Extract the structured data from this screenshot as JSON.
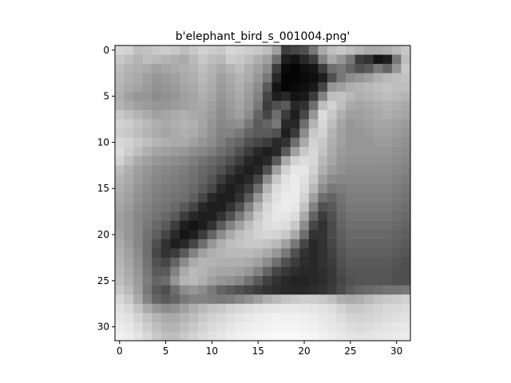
{
  "chart_data": {
    "type": "heatmap",
    "title": "b'elephant_bird_s_001004.png'",
    "xlabel": "",
    "ylabel": "",
    "colormap": "gray",
    "grid": false,
    "xlim": [
      -0.5,
      31.5
    ],
    "ylim": [
      31.5,
      -0.5
    ],
    "x_ticks": [
      0,
      5,
      10,
      15,
      20,
      25,
      30
    ],
    "y_ticks": [
      0,
      5,
      10,
      15,
      20,
      25,
      30
    ],
    "x_tick_labels": [
      "0",
      "5",
      "10",
      "15",
      "20",
      "25",
      "30"
    ],
    "y_tick_labels": [
      "0",
      "5",
      "10",
      "15",
      "20",
      "25",
      "30"
    ],
    "rows": 32,
    "cols": 32,
    "values": [
      [
        215,
        210,
        190,
        195,
        200,
        205,
        200,
        190,
        200,
        210,
        205,
        200,
        215,
        210,
        205,
        200,
        190,
        160,
        60,
        70,
        80,
        120,
        170,
        190,
        200,
        190,
        180,
        170,
        170,
        175,
        185,
        200
      ],
      [
        200,
        190,
        180,
        190,
        185,
        180,
        175,
        170,
        185,
        200,
        190,
        185,
        205,
        200,
        190,
        175,
        160,
        110,
        30,
        20,
        40,
        60,
        130,
        170,
        150,
        120,
        60,
        50,
        20,
        30,
        120,
        190
      ],
      [
        190,
        180,
        175,
        170,
        160,
        165,
        170,
        175,
        180,
        190,
        180,
        170,
        180,
        190,
        175,
        160,
        140,
        60,
        10,
        5,
        15,
        20,
        60,
        110,
        120,
        100,
        80,
        90,
        120,
        100,
        150,
        200
      ],
      [
        185,
        175,
        170,
        160,
        150,
        155,
        160,
        170,
        175,
        185,
        175,
        160,
        170,
        180,
        170,
        150,
        120,
        40,
        5,
        5,
        10,
        15,
        30,
        80,
        120,
        140,
        150,
        160,
        175,
        185,
        190,
        195
      ],
      [
        180,
        170,
        165,
        155,
        145,
        150,
        155,
        165,
        170,
        180,
        170,
        155,
        165,
        175,
        160,
        140,
        90,
        20,
        5,
        10,
        15,
        25,
        70,
        150,
        160,
        175,
        180,
        185,
        190,
        195,
        190,
        190
      ],
      [
        175,
        160,
        150,
        150,
        140,
        145,
        150,
        160,
        165,
        175,
        165,
        150,
        160,
        170,
        155,
        130,
        70,
        30,
        40,
        20,
        25,
        60,
        130,
        190,
        195,
        185,
        175,
        180,
        185,
        190,
        185,
        180
      ],
      [
        180,
        170,
        160,
        155,
        150,
        150,
        155,
        160,
        165,
        170,
        160,
        145,
        155,
        165,
        150,
        120,
        60,
        80,
        90,
        40,
        50,
        110,
        190,
        210,
        190,
        170,
        165,
        170,
        175,
        180,
        175,
        170
      ],
      [
        200,
        190,
        180,
        170,
        160,
        165,
        170,
        175,
        170,
        165,
        155,
        140,
        150,
        160,
        140,
        100,
        70,
        110,
        60,
        30,
        70,
        150,
        220,
        200,
        175,
        160,
        160,
        165,
        170,
        175,
        170,
        165
      ],
      [
        210,
        205,
        195,
        185,
        175,
        170,
        175,
        180,
        175,
        165,
        150,
        135,
        140,
        145,
        120,
        90,
        100,
        120,
        40,
        40,
        110,
        180,
        215,
        190,
        165,
        150,
        155,
        160,
        165,
        165,
        160,
        155
      ],
      [
        205,
        200,
        190,
        180,
        170,
        165,
        170,
        175,
        170,
        160,
        145,
        130,
        130,
        120,
        100,
        90,
        90,
        80,
        30,
        60,
        140,
        200,
        210,
        180,
        160,
        150,
        150,
        155,
        160,
        160,
        155,
        150
      ],
      [
        215,
        210,
        200,
        190,
        180,
        175,
        170,
        170,
        160,
        150,
        140,
        125,
        110,
        100,
        80,
        70,
        60,
        40,
        50,
        110,
        170,
        210,
        200,
        175,
        160,
        150,
        150,
        150,
        155,
        155,
        150,
        145
      ],
      [
        220,
        205,
        190,
        175,
        165,
        160,
        155,
        150,
        140,
        135,
        125,
        110,
        100,
        80,
        60,
        40,
        30,
        40,
        90,
        160,
        200,
        215,
        195,
        170,
        155,
        150,
        150,
        150,
        150,
        150,
        145,
        140
      ],
      [
        210,
        190,
        170,
        160,
        150,
        145,
        140,
        135,
        125,
        115,
        105,
        95,
        80,
        60,
        40,
        30,
        40,
        90,
        170,
        210,
        220,
        215,
        185,
        165,
        150,
        145,
        145,
        145,
        145,
        145,
        140,
        135
      ],
      [
        190,
        175,
        160,
        150,
        140,
        135,
        130,
        125,
        115,
        105,
        95,
        80,
        60,
        40,
        30,
        40,
        80,
        160,
        210,
        230,
        230,
        210,
        175,
        155,
        145,
        140,
        140,
        140,
        140,
        140,
        135,
        130
      ],
      [
        180,
        170,
        155,
        145,
        135,
        130,
        125,
        120,
        110,
        100,
        85,
        60,
        40,
        30,
        40,
        70,
        140,
        200,
        225,
        235,
        225,
        200,
        160,
        140,
        135,
        135,
        135,
        135,
        135,
        135,
        130,
        125
      ],
      [
        175,
        165,
        150,
        140,
        130,
        125,
        120,
        115,
        105,
        90,
        70,
        40,
        30,
        40,
        60,
        110,
        180,
        220,
        230,
        235,
        220,
        185,
        140,
        120,
        125,
        130,
        130,
        130,
        130,
        130,
        125,
        120
      ],
      [
        170,
        160,
        145,
        135,
        125,
        120,
        115,
        110,
        95,
        70,
        40,
        30,
        30,
        50,
        90,
        150,
        200,
        225,
        235,
        235,
        210,
        160,
        110,
        100,
        115,
        125,
        125,
        125,
        125,
        125,
        120,
        115
      ],
      [
        165,
        155,
        140,
        130,
        120,
        115,
        105,
        90,
        70,
        40,
        30,
        30,
        50,
        80,
        130,
        180,
        215,
        230,
        235,
        230,
        195,
        130,
        80,
        90,
        110,
        120,
        120,
        120,
        120,
        120,
        115,
        110
      ],
      [
        160,
        150,
        135,
        125,
        115,
        105,
        90,
        60,
        40,
        30,
        30,
        50,
        80,
        120,
        160,
        200,
        220,
        230,
        230,
        220,
        170,
        100,
        60,
        80,
        105,
        115,
        115,
        115,
        115,
        115,
        110,
        105
      ],
      [
        160,
        150,
        135,
        120,
        105,
        90,
        60,
        30,
        20,
        30,
        50,
        90,
        130,
        160,
        190,
        210,
        220,
        225,
        220,
        200,
        140,
        70,
        50,
        75,
        100,
        110,
        110,
        110,
        110,
        110,
        105,
        100
      ],
      [
        165,
        150,
        135,
        115,
        95,
        70,
        40,
        20,
        30,
        60,
        100,
        140,
        170,
        190,
        200,
        210,
        215,
        210,
        200,
        170,
        110,
        50,
        50,
        75,
        95,
        105,
        105,
        105,
        105,
        105,
        100,
        95
      ],
      [
        170,
        155,
        135,
        110,
        80,
        50,
        30,
        40,
        70,
        110,
        150,
        175,
        190,
        195,
        200,
        200,
        195,
        185,
        160,
        120,
        70,
        40,
        50,
        70,
        90,
        100,
        100,
        100,
        100,
        100,
        95,
        90
      ],
      [
        175,
        160,
        140,
        110,
        70,
        50,
        60,
        90,
        130,
        160,
        175,
        180,
        185,
        185,
        185,
        180,
        170,
        150,
        120,
        80,
        50,
        40,
        50,
        65,
        85,
        95,
        95,
        95,
        95,
        95,
        90,
        85
      ],
      [
        180,
        165,
        145,
        115,
        80,
        70,
        100,
        140,
        170,
        180,
        180,
        175,
        175,
        175,
        170,
        160,
        140,
        110,
        80,
        60,
        45,
        40,
        50,
        60,
        80,
        90,
        90,
        90,
        90,
        90,
        85,
        80
      ],
      [
        185,
        170,
        150,
        120,
        90,
        90,
        130,
        170,
        185,
        180,
        170,
        165,
        165,
        160,
        150,
        130,
        100,
        70,
        55,
        45,
        40,
        40,
        45,
        55,
        75,
        85,
        85,
        85,
        85,
        85,
        80,
        80
      ],
      [
        190,
        175,
        155,
        125,
        100,
        110,
        150,
        180,
        185,
        175,
        160,
        150,
        145,
        135,
        115,
        90,
        65,
        50,
        40,
        35,
        35,
        40,
        45,
        55,
        70,
        80,
        85,
        85,
        85,
        85,
        80,
        80
      ],
      [
        200,
        185,
        160,
        120,
        90,
        80,
        110,
        140,
        150,
        140,
        120,
        100,
        90,
        80,
        70,
        60,
        50,
        45,
        40,
        40,
        40,
        45,
        50,
        60,
        75,
        90,
        100,
        105,
        110,
        115,
        115,
        120
      ],
      [
        215,
        200,
        170,
        130,
        100,
        90,
        100,
        120,
        130,
        130,
        125,
        120,
        125,
        135,
        145,
        160,
        175,
        185,
        195,
        200,
        205,
        205,
        200,
        190,
        175,
        170,
        175,
        185,
        195,
        200,
        205,
        210
      ],
      [
        225,
        215,
        195,
        170,
        150,
        140,
        145,
        160,
        175,
        185,
        195,
        200,
        210,
        215,
        220,
        225,
        228,
        230,
        232,
        232,
        230,
        228,
        225,
        220,
        210,
        200,
        200,
        205,
        210,
        215,
        218,
        220
      ],
      [
        230,
        225,
        210,
        195,
        180,
        170,
        170,
        180,
        190,
        200,
        210,
        215,
        222,
        228,
        232,
        236,
        238,
        240,
        240,
        240,
        238,
        236,
        232,
        228,
        220,
        212,
        210,
        212,
        216,
        220,
        224,
        226
      ],
      [
        235,
        230,
        220,
        205,
        190,
        180,
        180,
        190,
        200,
        210,
        218,
        224,
        230,
        235,
        238,
        240,
        242,
        244,
        244,
        244,
        242,
        240,
        236,
        232,
        226,
        220,
        218,
        220,
        224,
        228,
        230,
        232
      ],
      [
        240,
        236,
        228,
        215,
        200,
        190,
        190,
        200,
        210,
        218,
        225,
        230,
        236,
        240,
        242,
        244,
        246,
        248,
        248,
        248,
        246,
        244,
        240,
        236,
        232,
        228,
        226,
        228,
        230,
        232,
        234,
        236
      ]
    ]
  }
}
